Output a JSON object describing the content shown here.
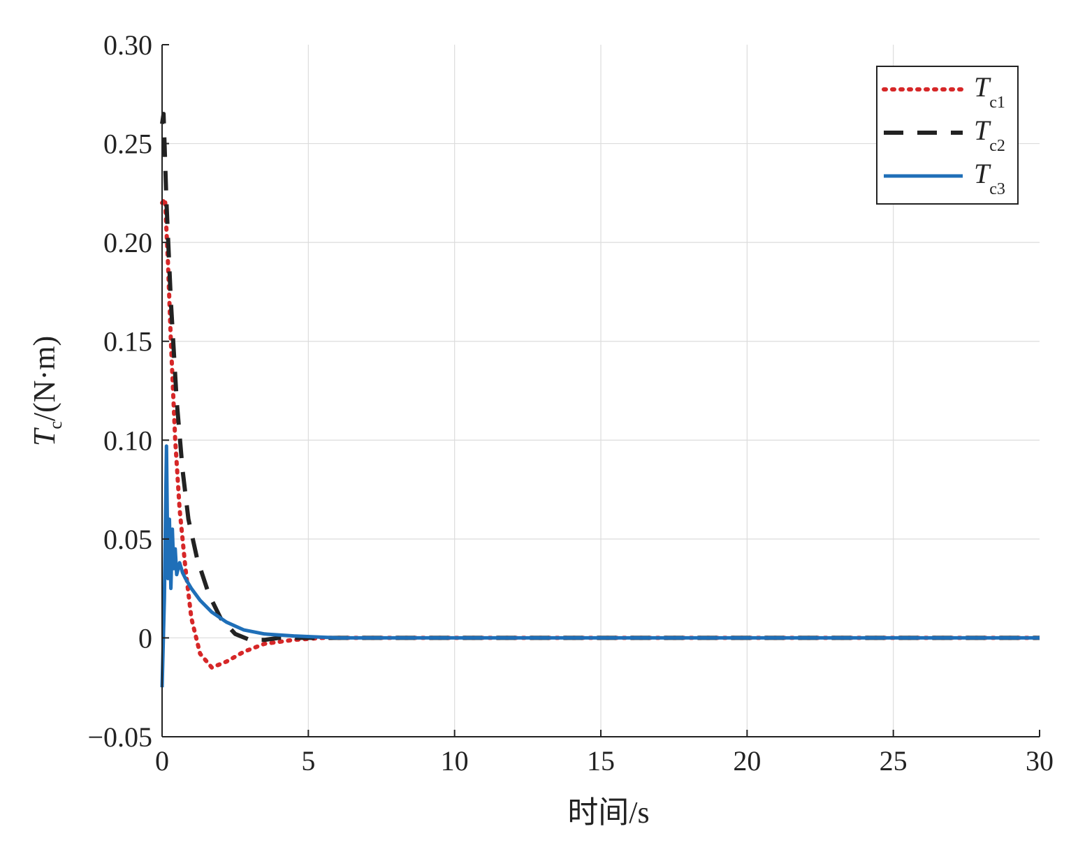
{
  "chart_data": {
    "type": "line",
    "xlabel": "时间/s",
    "ylabel": {
      "main": "T",
      "sub": "c",
      "unit": "/(N·m)"
    },
    "xlim": [
      0,
      30
    ],
    "ylim": [
      -0.05,
      0.3
    ],
    "xticks": [
      0,
      5,
      10,
      15,
      20,
      25,
      30
    ],
    "xtick_labels": [
      "0",
      "5",
      "10",
      "15",
      "20",
      "25",
      "30"
    ],
    "yticks": [
      -0.05,
      0,
      0.05,
      0.1,
      0.15,
      0.2,
      0.25,
      0.3
    ],
    "ytick_labels": [
      "−0.05",
      "0",
      "0.05",
      "0.10",
      "0.15",
      "0.20",
      "0.25",
      "0.30"
    ],
    "grid": true,
    "legend_position": "top-right",
    "series": [
      {
        "name": "T",
        "sub": "c1",
        "color": "#d62728",
        "style": "dotted",
        "x": [
          0,
          0.1,
          0.2,
          0.3,
          0.45,
          0.6,
          0.8,
          1.0,
          1.3,
          1.7,
          2.2,
          2.8,
          3.5,
          4.5,
          5.5,
          7,
          10,
          30
        ],
        "y": [
          0.22,
          0.222,
          0.19,
          0.15,
          0.1,
          0.065,
          0.035,
          0.01,
          -0.008,
          -0.015,
          -0.012,
          -0.007,
          -0.003,
          -0.001,
          0,
          0,
          0,
          0
        ]
      },
      {
        "name": "T",
        "sub": "c2",
        "color": "#222222",
        "style": "dashed",
        "x": [
          0,
          0.05,
          0.15,
          0.3,
          0.5,
          0.7,
          0.9,
          1.2,
          1.6,
          2.0,
          2.5,
          3.0,
          3.5,
          4.0,
          5,
          6,
          10,
          30
        ],
        "y": [
          0.26,
          0.265,
          0.22,
          0.17,
          0.12,
          0.085,
          0.06,
          0.04,
          0.022,
          0.01,
          0.002,
          -0.001,
          -0.001,
          0,
          0,
          0,
          0,
          0
        ]
      },
      {
        "name": "T",
        "sub": "c3",
        "color": "#1f6fb8",
        "style": "solid",
        "x": [
          0,
          0.08,
          0.15,
          0.2,
          0.25,
          0.3,
          0.35,
          0.4,
          0.45,
          0.5,
          0.6,
          0.7,
          0.8,
          1.0,
          1.3,
          1.7,
          2.2,
          2.8,
          3.5,
          4.5,
          6,
          8,
          10,
          30
        ],
        "y": [
          -0.025,
          0.02,
          0.097,
          0.03,
          0.06,
          0.025,
          0.055,
          0.035,
          0.045,
          0.032,
          0.038,
          0.033,
          0.03,
          0.025,
          0.019,
          0.013,
          0.008,
          0.004,
          0.002,
          0.001,
          0,
          0,
          0,
          0
        ]
      }
    ]
  }
}
